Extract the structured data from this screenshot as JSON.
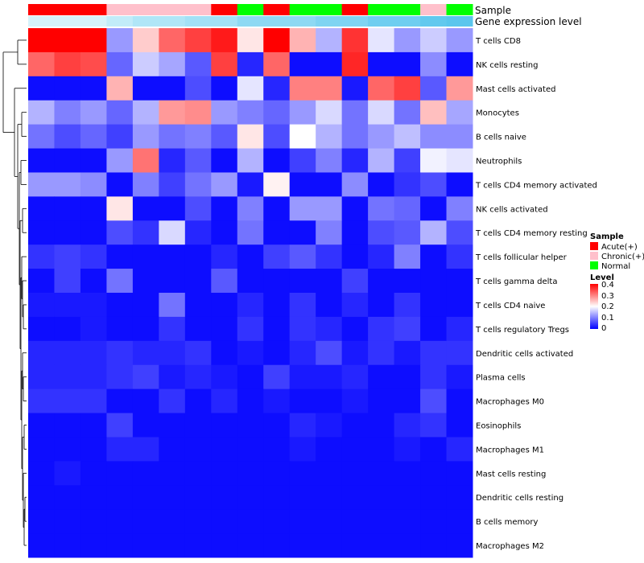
{
  "chart_data": {
    "type": "heatmap",
    "columns": 17,
    "annotation_tracks": [
      "Sample",
      "Gene expression level"
    ],
    "sample_annotation": [
      "Acute(+)",
      "Acute(+)",
      "Acute(+)",
      "Chronic(+)",
      "Chronic(+)",
      "Chronic(+)",
      "Chronic(+)",
      "Acute(+)",
      "Normal",
      "Acute(+)",
      "Normal",
      "Normal",
      "Acute(+)",
      "Normal",
      "Normal",
      "Chronic(+)",
      "Normal"
    ],
    "gene_expression_level_colors": [
      "#d6f2fb",
      "#d6f2fb",
      "#d6f2fb",
      "#c2ecf9",
      "#b0e6f7",
      "#b0e6f7",
      "#a3e1f6",
      "#a3e1f6",
      "#8ed9f3",
      "#8ed9f3",
      "#8ed9f3",
      "#7fd4f2",
      "#7fd4f2",
      "#6fcef0",
      "#6fcef0",
      "#62c9ee",
      "#5ac6ed"
    ],
    "rows": [
      "T cells CD8",
      "NK cells resting",
      "Mast cells activated",
      "Monocytes",
      "B cells naive",
      "Neutrophils",
      "T cells CD4 memory activated",
      "NK cells activated",
      "T cells CD4 memory resting",
      "T cells follicular helper",
      "T cells gamma delta",
      "T cells CD4 naive",
      "T cells regulatory  Tregs",
      "Dendritic cells activated",
      "Plasma cells",
      "Macrophages M0",
      "Eosinophils",
      "Macrophages M1",
      "Mast cells resting",
      "Dendritic cells resting",
      "B cells memory",
      "Macrophages M2"
    ],
    "values": [
      [
        0.4,
        0.4,
        0.4,
        0.12,
        0.24,
        0.32,
        0.35,
        0.38,
        0.22,
        0.4,
        0.26,
        0.14,
        0.36,
        0.18,
        0.12,
        0.16,
        0.12
      ],
      [
        0.32,
        0.35,
        0.34,
        0.08,
        0.16,
        0.13,
        0.07,
        0.35,
        0.03,
        0.32,
        0.01,
        0.01,
        0.37,
        0.01,
        0.01,
        0.11,
        0.01
      ],
      [
        0.01,
        0.01,
        0.01,
        0.26,
        0.01,
        0.01,
        0.06,
        0.01,
        0.18,
        0.03,
        0.3,
        0.3,
        0.02,
        0.32,
        0.35,
        0.07,
        0.28
      ],
      [
        0.14,
        0.1,
        0.12,
        0.08,
        0.14,
        0.28,
        0.29,
        0.12,
        0.1,
        0.08,
        0.12,
        0.17,
        0.09,
        0.17,
        0.09,
        0.25,
        0.13
      ],
      [
        0.09,
        0.06,
        0.08,
        0.05,
        0.12,
        0.09,
        0.1,
        0.07,
        0.22,
        0.06,
        0.2,
        0.14,
        0.09,
        0.12,
        0.15,
        0.11,
        0.11
      ],
      [
        0.01,
        0.01,
        0.01,
        0.12,
        0.31,
        0.03,
        0.07,
        0.01,
        0.14,
        0.01,
        0.05,
        0.1,
        0.03,
        0.14,
        0.05,
        0.19,
        0.18
      ],
      [
        0.12,
        0.12,
        0.11,
        0.01,
        0.1,
        0.05,
        0.09,
        0.12,
        0.02,
        0.21,
        0.01,
        0.01,
        0.11,
        0.01,
        0.04,
        0.06,
        0.01
      ],
      [
        0.01,
        0.01,
        0.01,
        0.22,
        0.01,
        0.01,
        0.06,
        0.01,
        0.1,
        0.01,
        0.12,
        0.12,
        0.01,
        0.09,
        0.08,
        0.01,
        0.1
      ],
      [
        0.01,
        0.01,
        0.01,
        0.06,
        0.04,
        0.17,
        0.03,
        0.01,
        0.09,
        0.01,
        0.01,
        0.1,
        0.01,
        0.06,
        0.07,
        0.14,
        0.06
      ],
      [
        0.04,
        0.05,
        0.04,
        0.01,
        0.01,
        0.01,
        0.01,
        0.03,
        0.01,
        0.05,
        0.07,
        0.04,
        0.01,
        0.03,
        0.1,
        0.01,
        0.04
      ],
      [
        0.01,
        0.05,
        0.01,
        0.09,
        0.01,
        0.01,
        0.01,
        0.07,
        0.01,
        0.01,
        0.01,
        0.01,
        0.05,
        0.01,
        0.01,
        0.01,
        0.01
      ],
      [
        0.02,
        0.02,
        0.02,
        0.01,
        0.01,
        0.09,
        0.01,
        0.01,
        0.03,
        0.01,
        0.04,
        0.01,
        0.03,
        0.01,
        0.04,
        0.01,
        0.01
      ],
      [
        0.01,
        0.01,
        0.02,
        0.01,
        0.01,
        0.04,
        0.01,
        0.01,
        0.04,
        0.01,
        0.04,
        0.03,
        0.01,
        0.04,
        0.05,
        0.01,
        0.03
      ],
      [
        0.03,
        0.03,
        0.03,
        0.04,
        0.03,
        0.03,
        0.04,
        0.01,
        0.02,
        0.01,
        0.03,
        0.06,
        0.02,
        0.04,
        0.02,
        0.04,
        0.04
      ],
      [
        0.03,
        0.03,
        0.03,
        0.04,
        0.05,
        0.02,
        0.03,
        0.02,
        0.01,
        0.05,
        0.02,
        0.02,
        0.03,
        0.01,
        0.01,
        0.04,
        0.02
      ],
      [
        0.04,
        0.04,
        0.04,
        0.01,
        0.01,
        0.04,
        0.01,
        0.03,
        0.01,
        0.02,
        0.01,
        0.01,
        0.02,
        0.01,
        0.01,
        0.06,
        0.01
      ],
      [
        0.01,
        0.01,
        0.01,
        0.05,
        0.01,
        0.01,
        0.01,
        0.01,
        0.01,
        0.01,
        0.03,
        0.02,
        0.01,
        0.01,
        0.03,
        0.04,
        0.01
      ],
      [
        0.01,
        0.01,
        0.01,
        0.03,
        0.03,
        0.01,
        0.01,
        0.01,
        0.01,
        0.01,
        0.02,
        0.01,
        0.01,
        0.01,
        0.02,
        0.01,
        0.03
      ],
      [
        0.01,
        0.02,
        0.01,
        0.01,
        0.01,
        0.01,
        0.01,
        0.01,
        0.01,
        0.01,
        0.01,
        0.01,
        0.01,
        0.01,
        0.01,
        0.01,
        0.01
      ],
      [
        0.01,
        0.01,
        0.01,
        0.01,
        0.01,
        0.01,
        0.01,
        0.01,
        0.01,
        0.01,
        0.01,
        0.01,
        0.01,
        0.01,
        0.01,
        0.01,
        0.01
      ],
      [
        0.01,
        0.01,
        0.01,
        0.01,
        0.01,
        0.01,
        0.01,
        0.01,
        0.01,
        0.01,
        0.01,
        0.01,
        0.01,
        0.01,
        0.01,
        0.01,
        0.01
      ],
      [
        0.01,
        0.01,
        0.01,
        0.01,
        0.01,
        0.01,
        0.01,
        0.01,
        0.01,
        0.01,
        0.01,
        0.01,
        0.01,
        0.01,
        0.01,
        0.01,
        0.01
      ]
    ],
    "color_scale": {
      "min": 0,
      "max": 0.4,
      "stops": [
        {
          "value": 0,
          "color": "#0000ff"
        },
        {
          "value": 0.2,
          "color": "#ffffff"
        },
        {
          "value": 0.4,
          "color": "#ff0000"
        }
      ]
    },
    "legend": {
      "sample": {
        "title": "Sample",
        "entries": [
          {
            "label": "Acute(+)",
            "color": "#ff0000"
          },
          {
            "label": "Chronic(+)",
            "color": "#ffc0cb"
          },
          {
            "label": "Normal",
            "color": "#00ff00"
          }
        ]
      },
      "level": {
        "title": "Level",
        "ticks": [
          "0.4",
          "0.3",
          "0.2",
          "0.1",
          "0"
        ]
      },
      "placement": "right"
    },
    "row_dendrogram": "left"
  }
}
